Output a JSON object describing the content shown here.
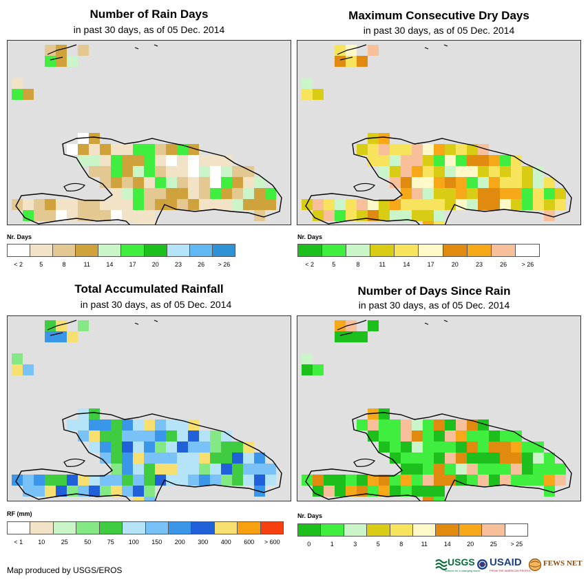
{
  "footer": "Map produced by USGS/EROS",
  "logos": {
    "usgs": "USGS",
    "usgs_tagline": "science for a changing world",
    "usaid": "USAID",
    "usaid_tagline": "FROM THE AMERICAN PEOPLE",
    "fews": "FEWS NET"
  },
  "panels": [
    {
      "title": "Number of Rain Days",
      "subtitle": "in past 30 days, as of 05 Dec. 2014",
      "legend_title": "Nr. Days",
      "legend_colors": [
        "#ffffff",
        "#f3e3c6",
        "#e3c891",
        "#cfa23c",
        "#c9f5c9",
        "#40ee40",
        "#1cbf1c",
        "#b5e3f7",
        "#62b8f2",
        "#2e92d4"
      ],
      "legend_labels": [
        "< 2",
        "5",
        "8",
        "11",
        "14",
        "17",
        "20",
        "23",
        "26",
        "> 26"
      ],
      "palette": [
        1,
        1,
        1,
        2,
        2,
        2,
        3,
        3,
        4,
        0,
        5
      ],
      "seed": 3
    },
    {
      "title": "Maximum Consecutive Dry Days",
      "subtitle": "in past 30 days, as of 05 Dec. 2014",
      "legend_title": "Nr. Days",
      "legend_colors": [
        "#1cbf1c",
        "#40ee40",
        "#c9f5c9",
        "#d9cc14",
        "#f7e35c",
        "#fff8c8",
        "#e08a10",
        "#f7a818",
        "#f7c09a",
        "#ffffff"
      ],
      "legend_labels": [
        "< 2",
        "5",
        "8",
        "11",
        "14",
        "17",
        "20",
        "23",
        "26",
        "> 26"
      ],
      "palette": [
        3,
        3,
        3,
        4,
        4,
        5,
        6,
        7,
        8,
        2,
        1
      ],
      "seed": 11
    },
    {
      "title": "Total Accumulated Rainfall",
      "subtitle": "in past 30 days, as of 05 Dec. 2014",
      "legend_title": "RF (mm)",
      "legend_colors": [
        "#ffffff",
        "#f3e3c6",
        "#c9f5c9",
        "#84e884",
        "#40cc40",
        "#b5e3f7",
        "#78c2f7",
        "#3a96e8",
        "#2060d8",
        "#f7e070",
        "#f7a010",
        "#f74010"
      ],
      "legend_labels": [
        "< 1",
        "10",
        "25",
        "50",
        "75",
        "100",
        "150",
        "200",
        "300",
        "400",
        "600",
        "> 600"
      ],
      "palette": [
        4,
        4,
        5,
        5,
        6,
        6,
        7,
        8,
        9,
        3
      ],
      "seed": 23
    },
    {
      "title": "Number of Days Since Rain",
      "subtitle": "in past 30 days, as of 05 Dec. 2014",
      "legend_title": "Nr. Days",
      "legend_colors": [
        "#1cbf1c",
        "#40ee40",
        "#c9f5c9",
        "#d9cc14",
        "#f7e35c",
        "#fff8c8",
        "#e08a10",
        "#f7a818",
        "#f7c09a",
        "#ffffff"
      ],
      "legend_labels": [
        "0",
        "1",
        "3",
        "5",
        "8",
        "11",
        "14",
        "20",
        "25",
        "> 25"
      ],
      "palette": [
        0,
        0,
        0,
        0,
        1,
        1,
        1,
        6,
        7,
        8,
        2
      ],
      "seed": 41
    }
  ]
}
